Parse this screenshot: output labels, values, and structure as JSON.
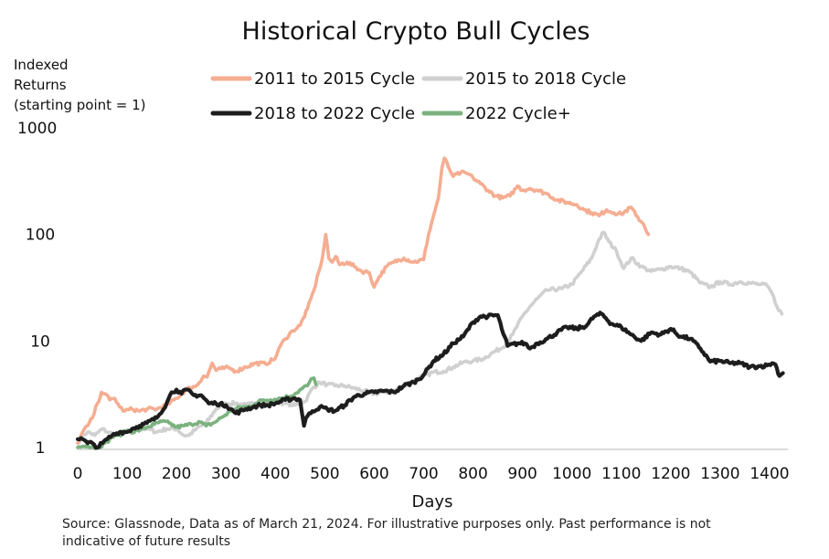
{
  "chart_data": {
    "type": "line",
    "title": "Historical Crypto Bull Cycles",
    "ylabel_lines": [
      "Indexed",
      "Returns",
      "(starting point = 1)"
    ],
    "xlabel": "Days",
    "y_scale": "log",
    "ylim": [
      1,
      1000
    ],
    "xlim": [
      0,
      1430
    ],
    "x_ticks": [
      "0",
      "100",
      "200",
      "300",
      "400",
      "500",
      "600",
      "700",
      "800",
      "900",
      "1000",
      "1100",
      "1200",
      "1300",
      "1400"
    ],
    "y_ticks": [
      "1",
      "10",
      "100",
      "1000"
    ],
    "grid": false,
    "legend_position": "top",
    "series": [
      {
        "name": "2011 to 2015 Cycle",
        "color": "#f5ad91",
        "points": [
          [
            0,
            1.1
          ],
          [
            10,
            1.4
          ],
          [
            20,
            1.6
          ],
          [
            30,
            1.9
          ],
          [
            40,
            2.6
          ],
          [
            48,
            3.3
          ],
          [
            55,
            3.2
          ],
          [
            65,
            2.8
          ],
          [
            75,
            2.9
          ],
          [
            85,
            2.4
          ],
          [
            95,
            2.2
          ],
          [
            110,
            2.3
          ],
          [
            125,
            2.2
          ],
          [
            140,
            2.3
          ],
          [
            160,
            2.3
          ],
          [
            180,
            2.5
          ],
          [
            200,
            2.9
          ],
          [
            220,
            3.5
          ],
          [
            240,
            3.8
          ],
          [
            255,
            4.7
          ],
          [
            262,
            4.6
          ],
          [
            272,
            6.2
          ],
          [
            280,
            5.3
          ],
          [
            290,
            5.5
          ],
          [
            305,
            5.6
          ],
          [
            320,
            5.2
          ],
          [
            340,
            5.7
          ],
          [
            360,
            6.2
          ],
          [
            380,
            6.1
          ],
          [
            400,
            6.9
          ],
          [
            410,
            9
          ],
          [
            420,
            10.5
          ],
          [
            435,
            12.5
          ],
          [
            450,
            14
          ],
          [
            465,
            20
          ],
          [
            478,
            30
          ],
          [
            488,
            45
          ],
          [
            495,
            60
          ],
          [
            502,
            100
          ],
          [
            508,
            60
          ],
          [
            515,
            55
          ],
          [
            522,
            62
          ],
          [
            530,
            52
          ],
          [
            545,
            55
          ],
          [
            560,
            50
          ],
          [
            575,
            45
          ],
          [
            590,
            44
          ],
          [
            600,
            32
          ],
          [
            610,
            40
          ],
          [
            625,
            50
          ],
          [
            640,
            55
          ],
          [
            660,
            60
          ],
          [
            680,
            55
          ],
          [
            700,
            58
          ],
          [
            710,
            100
          ],
          [
            720,
            150
          ],
          [
            730,
            220
          ],
          [
            737,
            420
          ],
          [
            742,
            520
          ],
          [
            750,
            430
          ],
          [
            760,
            350
          ],
          [
            775,
            380
          ],
          [
            790,
            370
          ],
          [
            800,
            340
          ],
          [
            815,
            300
          ],
          [
            830,
            260
          ],
          [
            845,
            230
          ],
          [
            860,
            220
          ],
          [
            875,
            230
          ],
          [
            890,
            285
          ],
          [
            900,
            260
          ],
          [
            915,
            270
          ],
          [
            930,
            260
          ],
          [
            950,
            240
          ],
          [
            970,
            210
          ],
          [
            990,
            200
          ],
          [
            1010,
            190
          ],
          [
            1025,
            170
          ],
          [
            1040,
            160
          ],
          [
            1055,
            150
          ],
          [
            1070,
            170
          ],
          [
            1085,
            160
          ],
          [
            1100,
            155
          ],
          [
            1120,
            180
          ],
          [
            1130,
            150
          ],
          [
            1145,
            125
          ],
          [
            1155,
            100
          ]
        ]
      },
      {
        "name": "2015 to 2018 Cycle",
        "color": "#d0d0d0",
        "points": [
          [
            0,
            1.1
          ],
          [
            10,
            1.3
          ],
          [
            20,
            1.4
          ],
          [
            35,
            1.3
          ],
          [
            50,
            1.5
          ],
          [
            60,
            1.4
          ],
          [
            80,
            1.3
          ],
          [
            100,
            1.4
          ],
          [
            120,
            1.5
          ],
          [
            140,
            1.5
          ],
          [
            160,
            1.4
          ],
          [
            180,
            1.5
          ],
          [
            200,
            1.5
          ],
          [
            215,
            1.3
          ],
          [
            225,
            1.3
          ],
          [
            240,
            1.5
          ],
          [
            260,
            1.7
          ],
          [
            280,
            2.3
          ],
          [
            300,
            2.6
          ],
          [
            320,
            2.6
          ],
          [
            340,
            2.5
          ],
          [
            360,
            2.6
          ],
          [
            380,
            2.7
          ],
          [
            400,
            2.7
          ],
          [
            420,
            2.6
          ],
          [
            440,
            2.5
          ],
          [
            460,
            2.7
          ],
          [
            475,
            3.6
          ],
          [
            490,
            4.1
          ],
          [
            505,
            3.9
          ],
          [
            520,
            3.8
          ],
          [
            540,
            3.8
          ],
          [
            560,
            3.6
          ],
          [
            580,
            3.4
          ],
          [
            600,
            3.2
          ],
          [
            620,
            3.3
          ],
          [
            640,
            3.4
          ],
          [
            660,
            3.8
          ],
          [
            680,
            4.2
          ],
          [
            700,
            4.7
          ],
          [
            720,
            5.1
          ],
          [
            740,
            5.2
          ],
          [
            760,
            5.7
          ],
          [
            780,
            6.3
          ],
          [
            800,
            6.5
          ],
          [
            820,
            6.8
          ],
          [
            840,
            7.8
          ],
          [
            860,
            8.7
          ],
          [
            880,
            11.5
          ],
          [
            900,
            17
          ],
          [
            915,
            21
          ],
          [
            930,
            25
          ],
          [
            950,
            30
          ],
          [
            980,
            31
          ],
          [
            1000,
            34
          ],
          [
            1020,
            45
          ],
          [
            1040,
            60
          ],
          [
            1055,
            90
          ],
          [
            1064,
            105
          ],
          [
            1075,
            85
          ],
          [
            1090,
            70
          ],
          [
            1105,
            48
          ],
          [
            1120,
            60
          ],
          [
            1140,
            50
          ],
          [
            1160,
            45
          ],
          [
            1180,
            47
          ],
          [
            1200,
            50
          ],
          [
            1220,
            48
          ],
          [
            1240,
            44
          ],
          [
            1260,
            35
          ],
          [
            1280,
            32
          ],
          [
            1300,
            36
          ],
          [
            1320,
            34
          ],
          [
            1340,
            36
          ],
          [
            1360,
            35
          ],
          [
            1380,
            34
          ],
          [
            1395,
            33
          ],
          [
            1405,
            28
          ],
          [
            1415,
            21
          ],
          [
            1425,
            18
          ]
        ]
      },
      {
        "name": "2018 to 2022 Cycle",
        "color": "#1d1d1d",
        "points": [
          [
            0,
            1.2
          ],
          [
            10,
            1.2
          ],
          [
            20,
            1.1
          ],
          [
            30,
            1.1
          ],
          [
            40,
            1.0
          ],
          [
            50,
            1.1
          ],
          [
            60,
            1.2
          ],
          [
            70,
            1.3
          ],
          [
            85,
            1.4
          ],
          [
            100,
            1.4
          ],
          [
            110,
            1.5
          ],
          [
            125,
            1.6
          ],
          [
            140,
            1.7
          ],
          [
            160,
            1.9
          ],
          [
            180,
            2.6
          ],
          [
            190,
            3.3
          ],
          [
            200,
            3.5
          ],
          [
            210,
            3.2
          ],
          [
            220,
            3.5
          ],
          [
            235,
            3.1
          ],
          [
            250,
            3.1
          ],
          [
            265,
            2.6
          ],
          [
            280,
            2.6
          ],
          [
            300,
            2.5
          ],
          [
            320,
            2.1
          ],
          [
            340,
            2.3
          ],
          [
            355,
            2.4
          ],
          [
            370,
            2.5
          ],
          [
            385,
            2.5
          ],
          [
            400,
            2.6
          ],
          [
            420,
            2.8
          ],
          [
            440,
            2.9
          ],
          [
            450,
            2.8
          ],
          [
            458,
            1.6
          ],
          [
            462,
            1.9
          ],
          [
            475,
            2.2
          ],
          [
            490,
            2.4
          ],
          [
            505,
            2.3
          ],
          [
            520,
            2.2
          ],
          [
            540,
            2.5
          ],
          [
            560,
            3.0
          ],
          [
            580,
            3.2
          ],
          [
            600,
            3.3
          ],
          [
            620,
            3.4
          ],
          [
            640,
            3.3
          ],
          [
            660,
            3.8
          ],
          [
            680,
            4.1
          ],
          [
            700,
            4.8
          ],
          [
            720,
            6.5
          ],
          [
            740,
            7.5
          ],
          [
            760,
            9.5
          ],
          [
            780,
            11
          ],
          [
            800,
            15
          ],
          [
            815,
            17
          ],
          [
            830,
            17
          ],
          [
            850,
            17.5
          ],
          [
            858,
            13
          ],
          [
            870,
            9
          ],
          [
            890,
            9.5
          ],
          [
            905,
            9.5
          ],
          [
            915,
            8.5
          ],
          [
            930,
            9.5
          ],
          [
            950,
            10.5
          ],
          [
            970,
            12
          ],
          [
            990,
            13.5
          ],
          [
            1010,
            13
          ],
          [
            1030,
            14
          ],
          [
            1045,
            17
          ],
          [
            1060,
            18
          ],
          [
            1080,
            14.5
          ],
          [
            1100,
            13.5
          ],
          [
            1120,
            11.5
          ],
          [
            1140,
            10
          ],
          [
            1160,
            12
          ],
          [
            1180,
            11.5
          ],
          [
            1200,
            13
          ],
          [
            1220,
            11
          ],
          [
            1240,
            10.5
          ],
          [
            1260,
            8.5
          ],
          [
            1280,
            6.4
          ],
          [
            1300,
            6.5
          ],
          [
            1320,
            6.2
          ],
          [
            1340,
            6.2
          ],
          [
            1360,
            5.7
          ],
          [
            1380,
            5.8
          ],
          [
            1395,
            5.9
          ],
          [
            1405,
            6.2
          ],
          [
            1412,
            6.0
          ],
          [
            1420,
            4.7
          ],
          [
            1427,
            5.0
          ]
        ]
      },
      {
        "name": "2022 Cycle+",
        "color": "#7bb27f",
        "points": [
          [
            0,
            1.0
          ],
          [
            20,
            1.05
          ],
          [
            40,
            1.0
          ],
          [
            55,
            1.1
          ],
          [
            65,
            1.2
          ],
          [
            75,
            1.3
          ],
          [
            90,
            1.35
          ],
          [
            100,
            1.45
          ],
          [
            115,
            1.4
          ],
          [
            130,
            1.5
          ],
          [
            140,
            1.55
          ],
          [
            155,
            1.65
          ],
          [
            170,
            1.75
          ],
          [
            185,
            1.7
          ],
          [
            200,
            1.55
          ],
          [
            215,
            1.6
          ],
          [
            230,
            1.65
          ],
          [
            245,
            1.75
          ],
          [
            260,
            1.6
          ],
          [
            275,
            1.7
          ],
          [
            290,
            1.9
          ],
          [
            310,
            2.2
          ],
          [
            330,
            2.4
          ],
          [
            345,
            2.4
          ],
          [
            360,
            2.6
          ],
          [
            375,
            2.8
          ],
          [
            390,
            2.8
          ],
          [
            410,
            2.9
          ],
          [
            425,
            3.0
          ],
          [
            440,
            3.2
          ],
          [
            455,
            3.6
          ],
          [
            465,
            3.8
          ],
          [
            470,
            4.2
          ],
          [
            478,
            4.5
          ],
          [
            482,
            3.9
          ]
        ]
      }
    ]
  },
  "source_note_lines": [
    "Source: Glassnode, Data as of March 21, 2024. For illustrative purposes only. Past performance is not",
    "indicative of future results"
  ]
}
